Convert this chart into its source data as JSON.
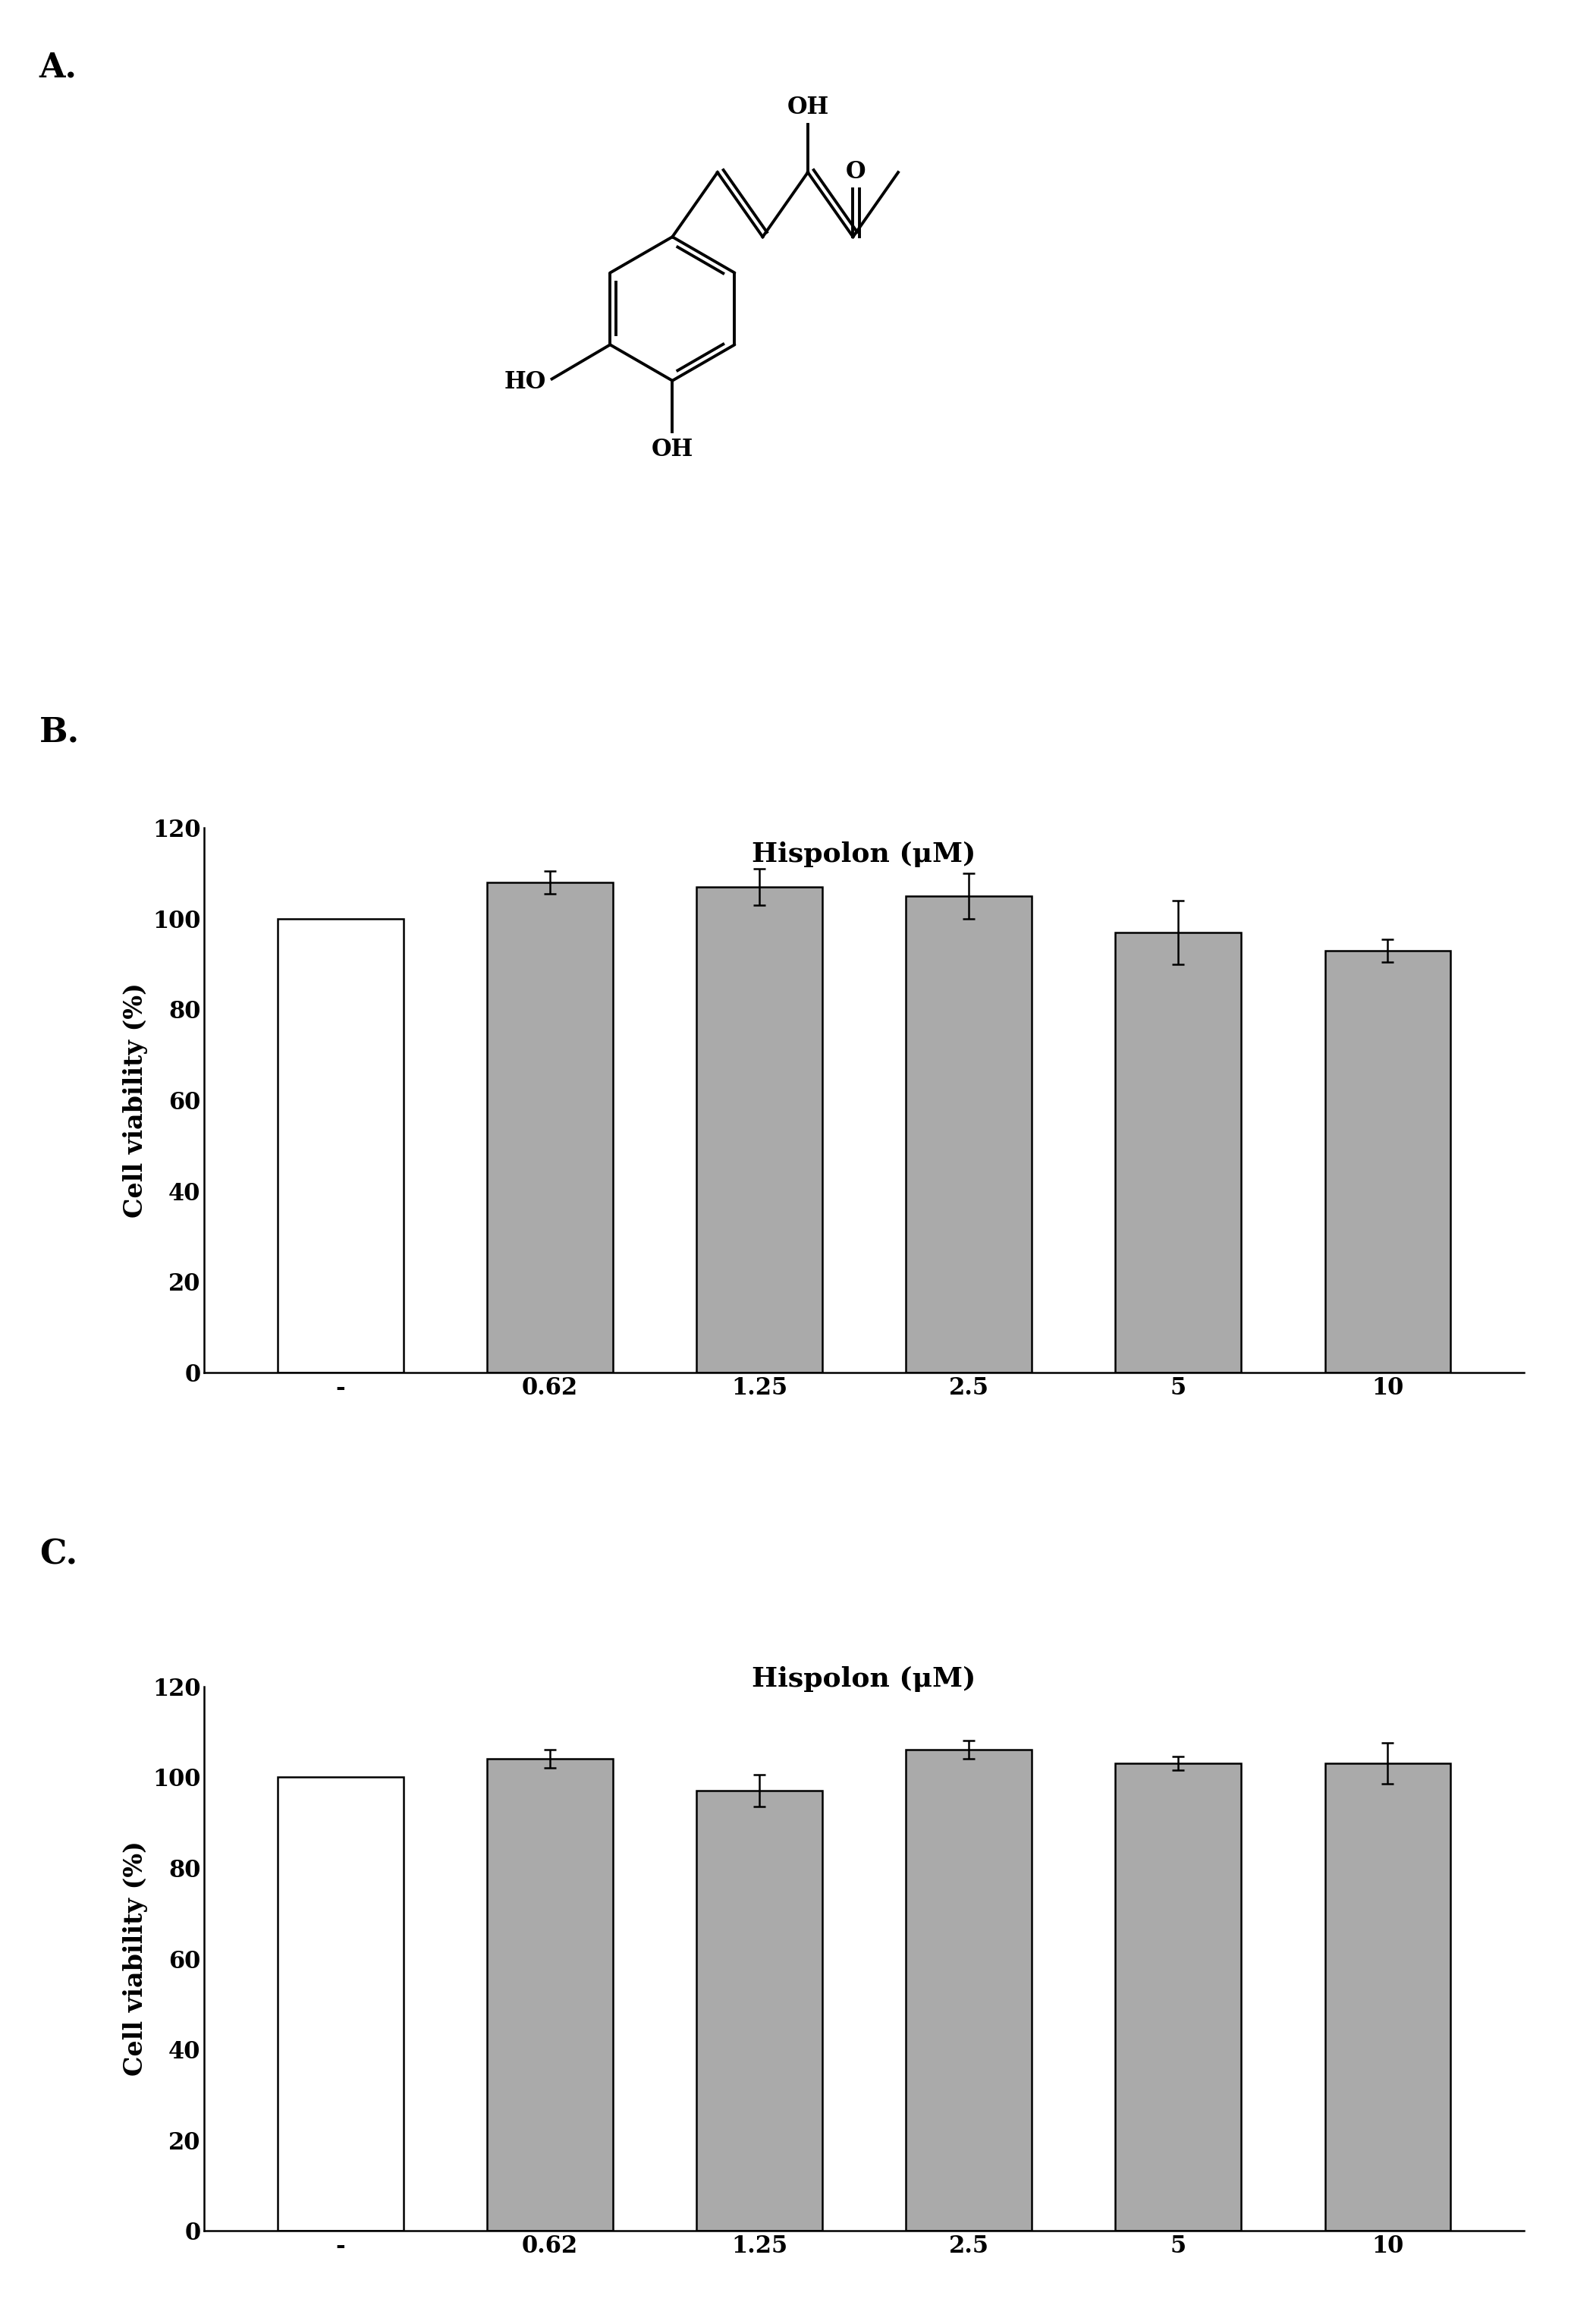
{
  "panel_A_label": "A.",
  "panel_B_label": "B.",
  "panel_C_label": "C.",
  "bar_categories": [
    "-",
    "0.62",
    "1.25",
    "2.5",
    "5",
    "10"
  ],
  "xlabel": "Hispolon (μM)",
  "ylabel": "Cell viability (%)",
  "ylim": [
    0,
    120
  ],
  "yticks": [
    0,
    20,
    40,
    60,
    80,
    100,
    120
  ],
  "bar_values_B": [
    100,
    108,
    107,
    105,
    97,
    93
  ],
  "bar_errors_B": [
    0,
    2.5,
    4,
    5,
    7,
    2.5
  ],
  "bar_values_C": [
    100,
    104,
    97,
    106,
    103,
    103
  ],
  "bar_errors_C": [
    0,
    2,
    3.5,
    2,
    1.5,
    4.5
  ],
  "bar_colors_B": [
    "#ffffff",
    "#aaaaaa",
    "#aaaaaa",
    "#aaaaaa",
    "#aaaaaa",
    "#aaaaaa"
  ],
  "bar_colors_C": [
    "#ffffff",
    "#aaaaaa",
    "#aaaaaa",
    "#aaaaaa",
    "#aaaaaa",
    "#aaaaaa"
  ],
  "bar_edgecolor": "#000000",
  "error_color": "#000000",
  "fig_width": 20.71,
  "fig_height": 30.63,
  "background_color": "#ffffff",
  "label_fontsize": 32,
  "tick_fontsize": 22,
  "axis_label_fontsize": 24,
  "xlabel_fontsize": 26,
  "bar_width": 0.6,
  "lw": 2.0
}
